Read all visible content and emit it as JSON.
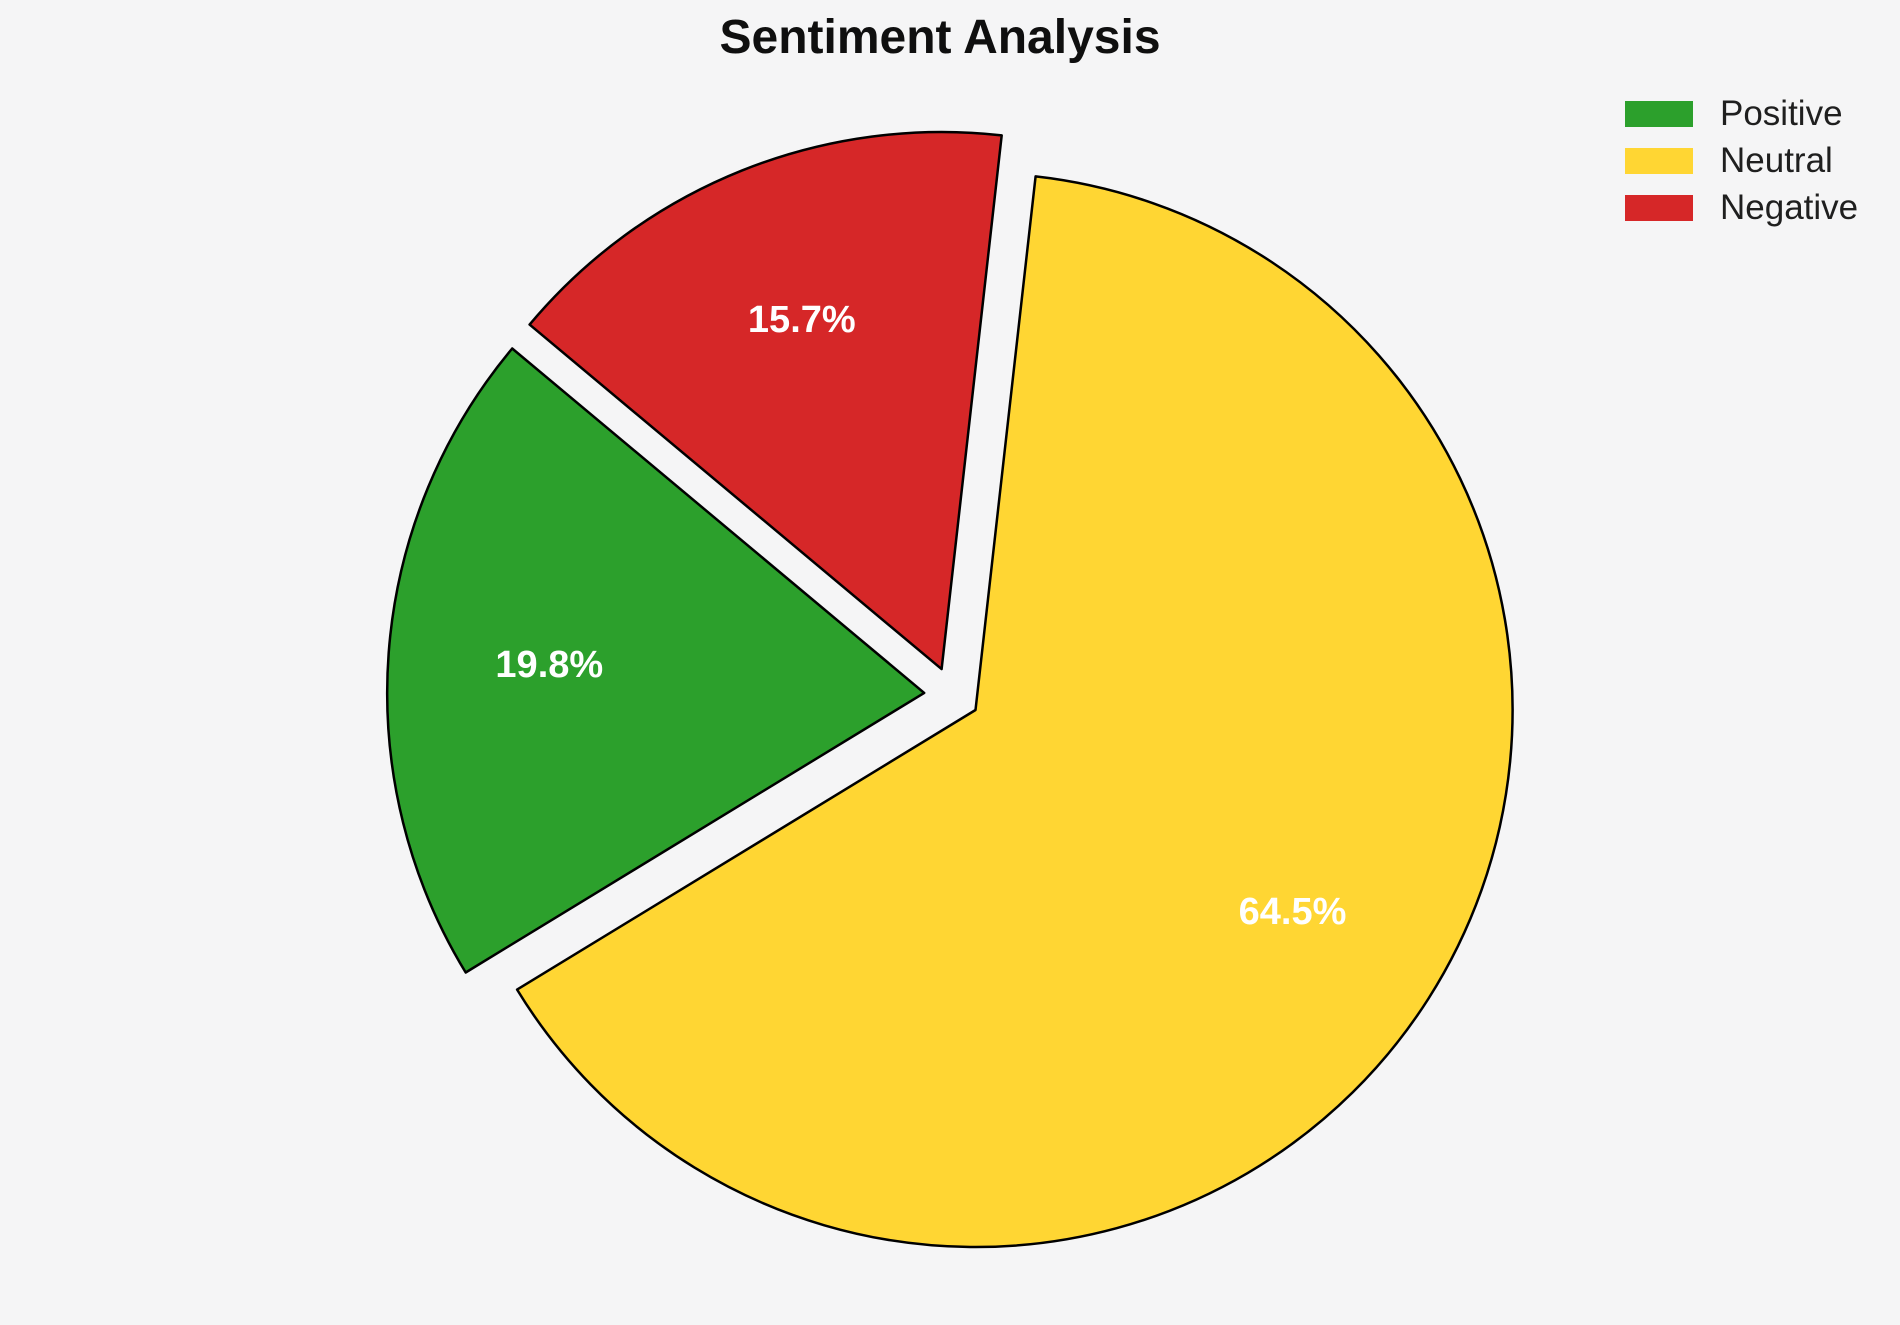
{
  "title": "Sentiment Analysis",
  "colors": {
    "background": "#f5f5f6",
    "wedge_stroke": "#000000",
    "percent_label_text": "#ffffff",
    "title_text": "#0f0f0f",
    "legend_text": "#1f1f1f"
  },
  "chart_data": {
    "type": "pie",
    "title": "Sentiment Analysis",
    "series": [
      {
        "name": "Positive",
        "value": 19.8,
        "percent_label": "19.8%",
        "color": "#2ca02c"
      },
      {
        "name": "Neutral",
        "value": 64.5,
        "percent_label": "64.5%",
        "color": "#ffd633"
      },
      {
        "name": "Negative",
        "value": 15.7,
        "percent_label": "15.7%",
        "color": "#d62728"
      }
    ],
    "start_angle_deg": 140.1,
    "counterclockwise": true,
    "explode_fraction": 0.052,
    "pct_distance": 0.7,
    "legend_position": "upper right",
    "grid": false
  }
}
